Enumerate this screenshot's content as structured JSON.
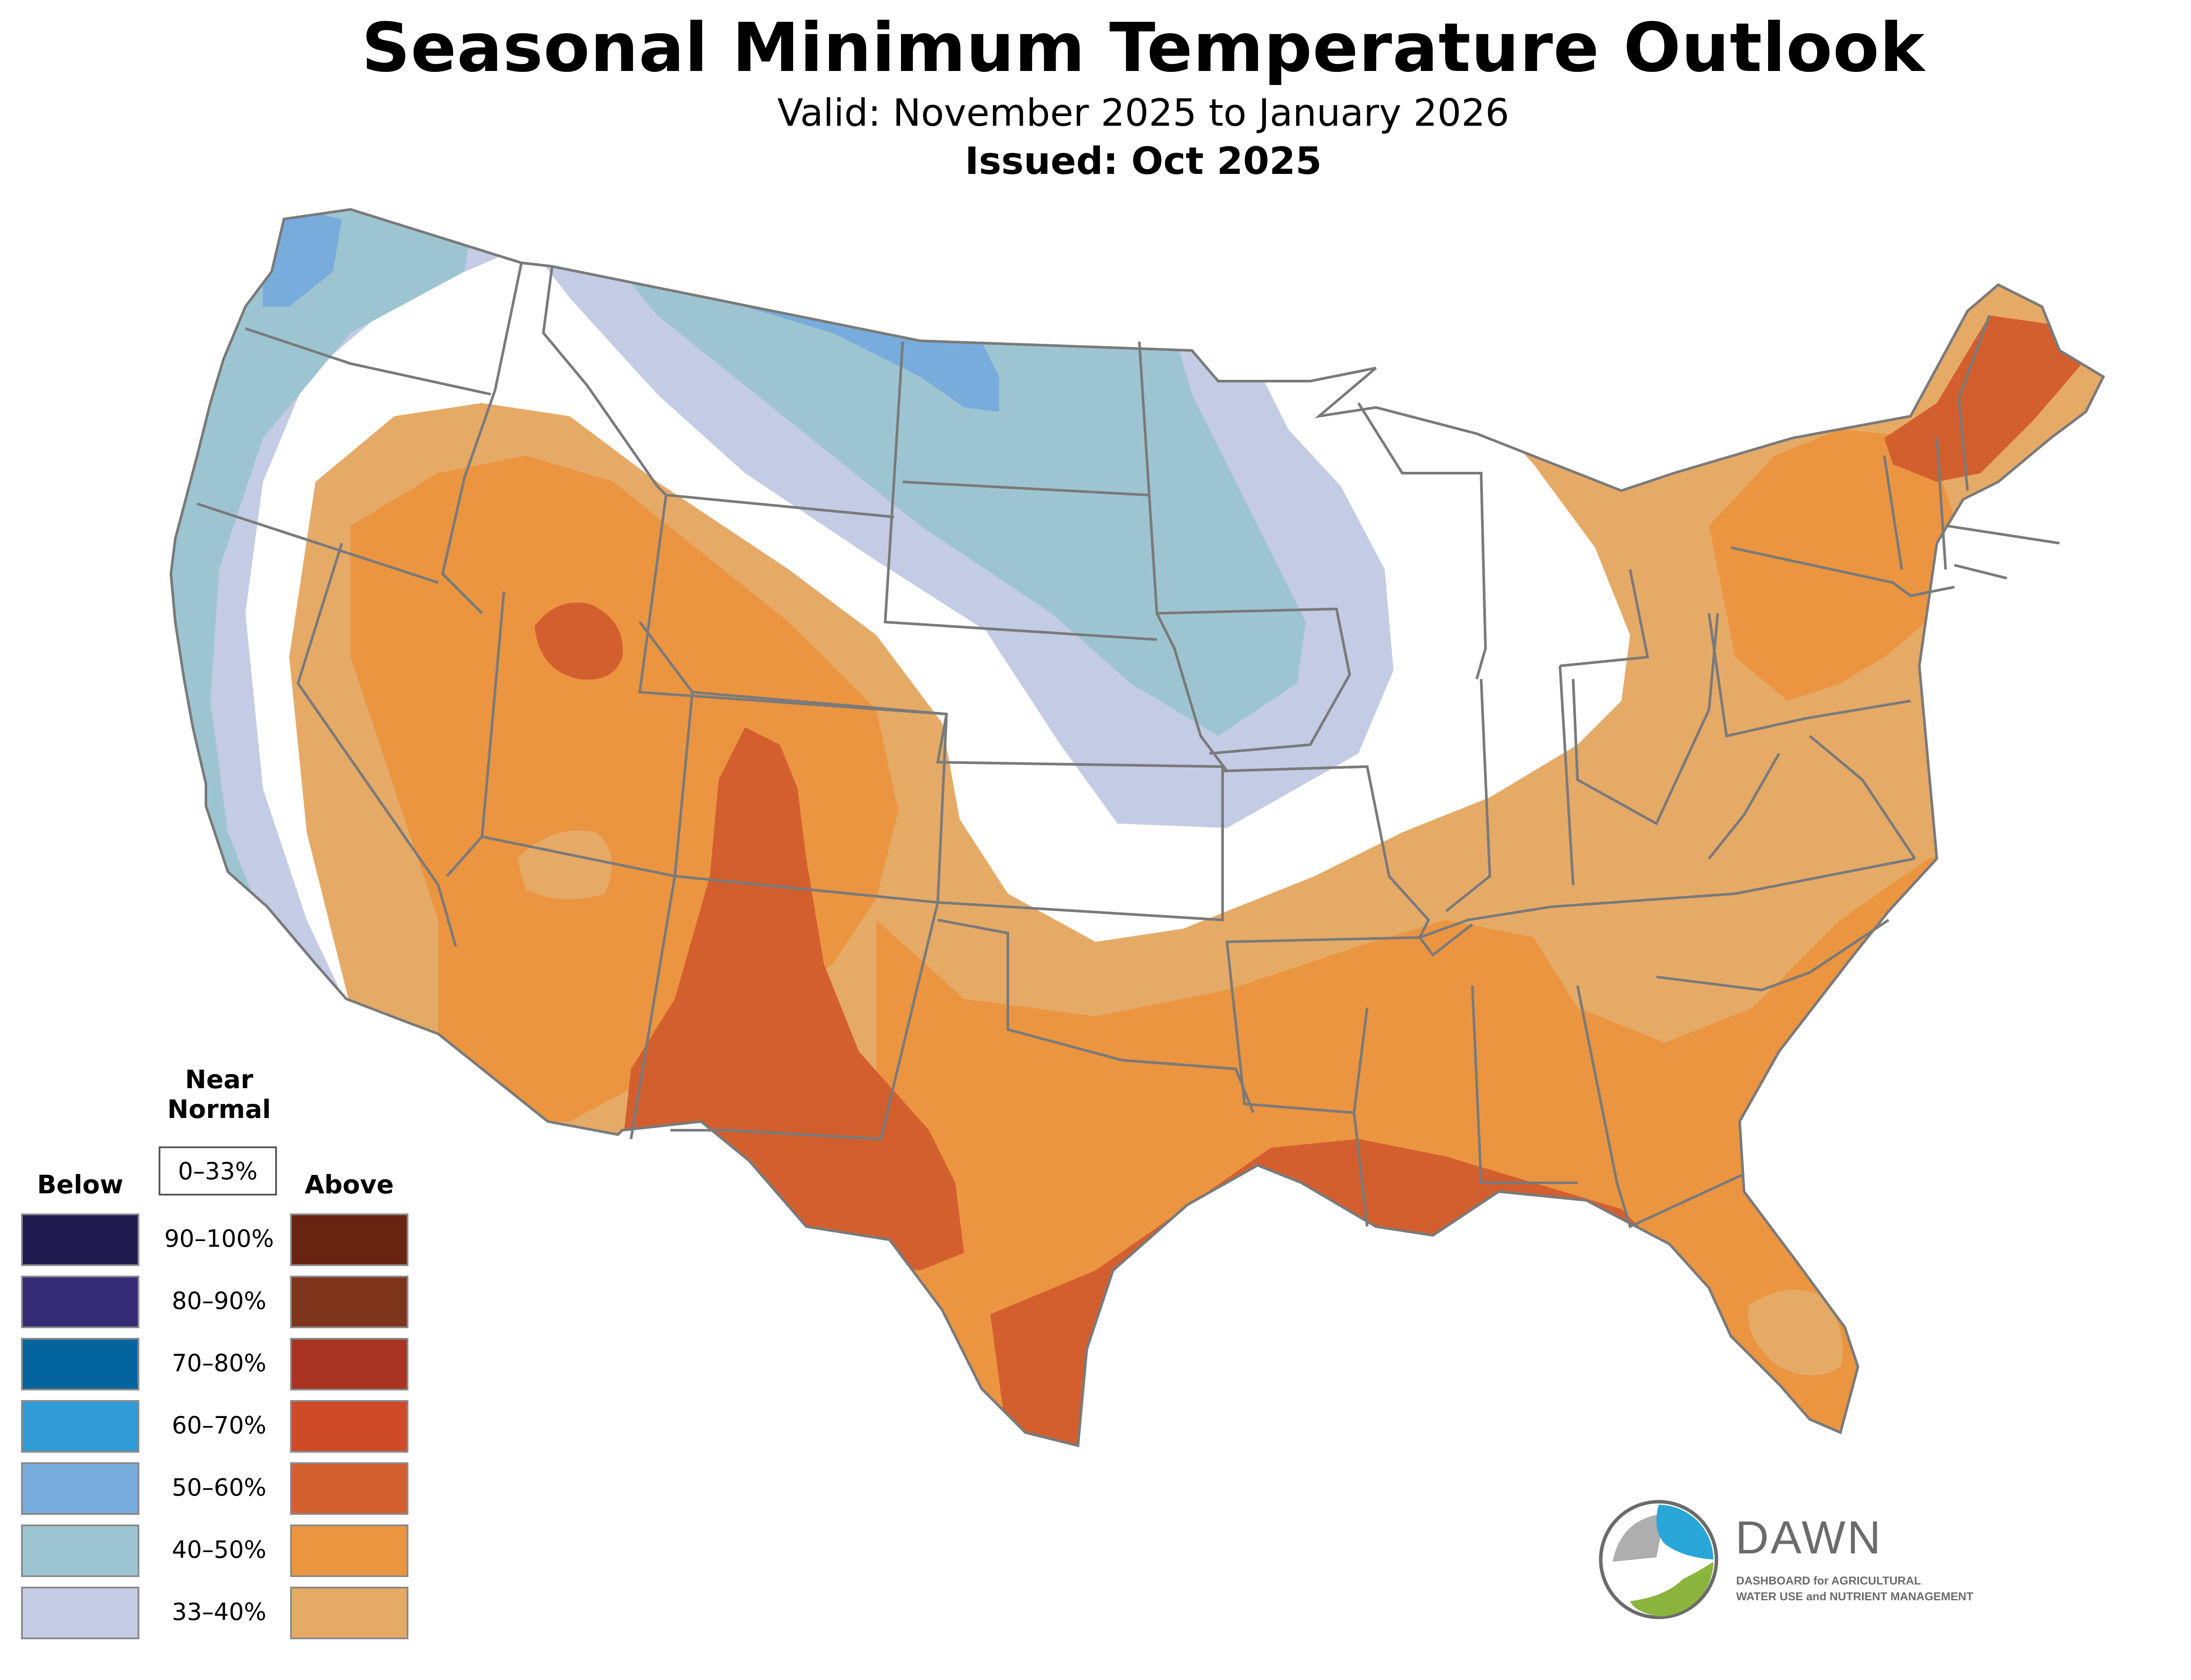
{
  "header": {
    "title": "Seasonal Minimum Temperature Outlook",
    "valid": "Valid: November 2025 to January 2026",
    "issued": "Issued: Oct 2025"
  },
  "legend": {
    "near_normal_heading_line1": "Near",
    "near_normal_heading_line2": "Normal",
    "near_normal_range": "0–33%",
    "below_heading": "Below",
    "above_heading": "Above",
    "rows": [
      {
        "label": "90–100%",
        "below_color": "#1f1b4f",
        "above_color": "#6a2512"
      },
      {
        "label": "80–90%",
        "below_color": "#352b75",
        "above_color": "#7e351c"
      },
      {
        "label": "70–80%",
        "below_color": "#04649e",
        "above_color": "#a83322"
      },
      {
        "label": "60–70%",
        "below_color": "#319bd6",
        "above_color": "#cf4a26"
      },
      {
        "label": "50–60%",
        "below_color": "#78acdd",
        "above_color": "#d45f2e"
      },
      {
        "label": "40–50%",
        "below_color": "#9dc5d1",
        "above_color": "#eb9541"
      },
      {
        "label": "33–40%",
        "below_color": "#c4cbe4",
        "above_color": "#e6aa67"
      }
    ]
  },
  "colors": {
    "state_border": "#7a7a7a",
    "below_33_40": "#c4cbe4",
    "below_40_50": "#9dc5d1",
    "below_50_60": "#78acdd",
    "above_33_40": "#e6aa67",
    "above_40_50": "#eb9541",
    "above_50_60": "#d45f2e"
  },
  "logo": {
    "name": "DAWN",
    "tagline_line1": "DASHBOARD for AGRICULTURAL",
    "tagline_line2": "WATER USE and NUTRIENT MANAGEMENT",
    "blue": "#29a6d8",
    "green": "#8bb43d",
    "gray": "#6b6b6b"
  }
}
